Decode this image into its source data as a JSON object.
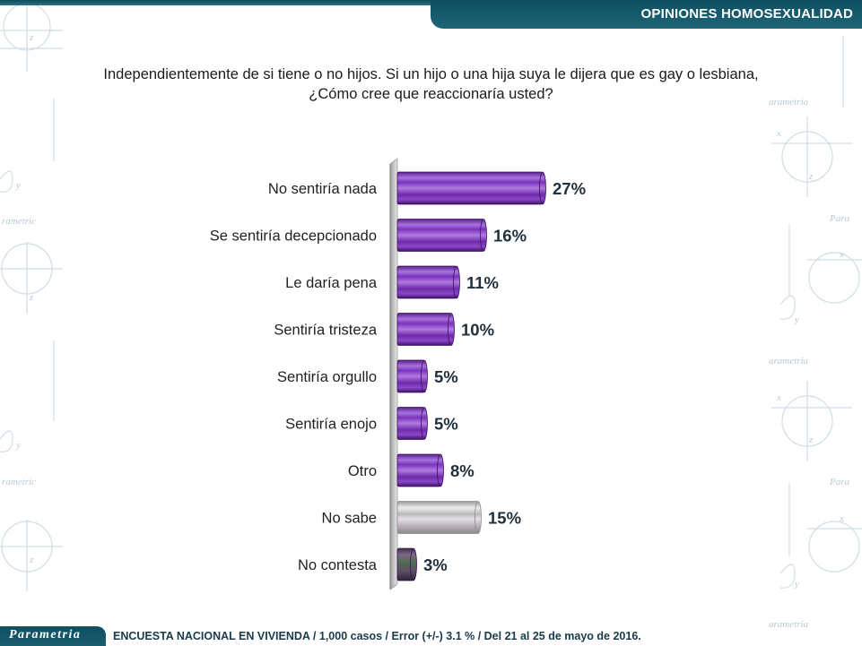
{
  "header": {
    "title": "OPINIONES HOMOSEXUALIDAD"
  },
  "question": {
    "line1": "Independientemente de si tiene o no hijos. Si un hijo o una hija suya le dijera que es gay o lesbiana,",
    "line2": "¿Cómo cree que reaccionaría usted?"
  },
  "footer": {
    "logo": "Parametria",
    "note": "ENCUESTA NACIONAL EN VIVIENDA / 1,000 casos / Error (+/-) 3.1 % / Del 21 al 25 de mayo de 2016."
  },
  "colors": {
    "purple": "#7a2fb8",
    "gray": "#c4c4c4",
    "dark": "#5b4a63",
    "label_text": "#222222",
    "value_text": "#1f2f3c"
  },
  "chart_data": {
    "type": "bar",
    "orientation": "horizontal",
    "categories": [
      "No sentiría nada",
      "Se sentiría decepcionado",
      "Le daría pena",
      "Sentiría tristeza",
      "Sentiría orgullo",
      "Sentiría enojo",
      "Otro",
      "No sabe",
      "No contesta"
    ],
    "values": [
      27,
      16,
      11,
      10,
      5,
      5,
      8,
      15,
      3
    ],
    "value_labels": [
      "27%",
      "16%",
      "11%",
      "10%",
      "5%",
      "5%",
      "8%",
      "15%",
      "3%"
    ],
    "bar_colors": [
      "purple",
      "purple",
      "purple",
      "purple",
      "purple",
      "purple",
      "purple",
      "gray",
      "dark"
    ],
    "xlim": [
      0,
      30
    ],
    "unit": "%",
    "grid": false,
    "legend": "none"
  }
}
